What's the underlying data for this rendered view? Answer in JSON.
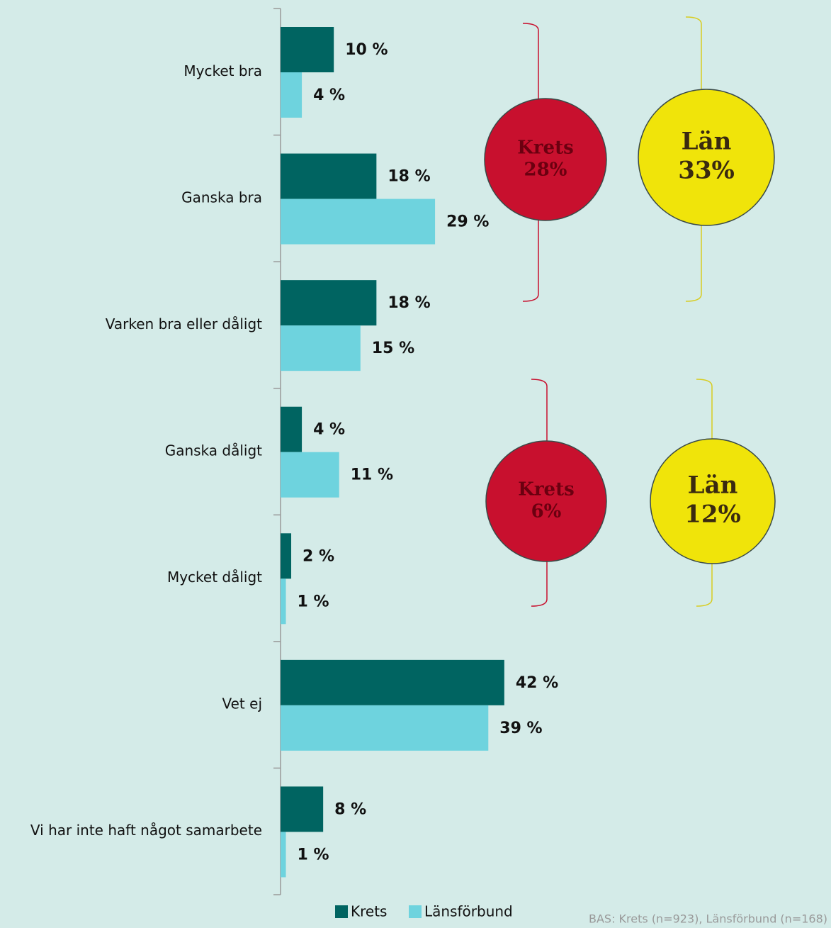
{
  "chart_data": {
    "type": "bar",
    "orientation": "horizontal",
    "categories": [
      "Mycket bra",
      "Ganska bra",
      "Varken bra eller dåligt",
      "Ganska dåligt",
      "Mycket dåligt",
      "Vet ej",
      "Vi har inte haft något samarbete"
    ],
    "series": [
      {
        "name": "Krets",
        "color": "#006461",
        "values": [
          10,
          18,
          18,
          4,
          2,
          42,
          8
        ],
        "value_labels": [
          "10 %",
          "18 %",
          "18 %",
          "4 %",
          "2 %",
          "42 %",
          "8 %"
        ]
      },
      {
        "name": "Länsförbund",
        "color": "#6ed3de",
        "values": [
          4,
          29,
          15,
          11,
          1,
          39,
          1
        ],
        "value_labels": [
          "4 %",
          "29 %",
          "15 %",
          "11 %",
          "1 %",
          "39 %",
          "1 %"
        ]
      }
    ],
    "annotations": [
      {
        "text": "Krets",
        "value": 28,
        "value_label": "28%",
        "color": "#c8102e"
      },
      {
        "text": "Län",
        "value": 33,
        "value_label": "33%",
        "color": "#f0e40a"
      },
      {
        "text": "Krets",
        "value": 6,
        "value_label": "6%",
        "color": "#c8102e"
      },
      {
        "text": "Län",
        "value": 12,
        "value_label": "12%",
        "color": "#f0e40a"
      }
    ],
    "footnote": "BAS: Krets (n=923), Länsförbund (n=168)"
  }
}
